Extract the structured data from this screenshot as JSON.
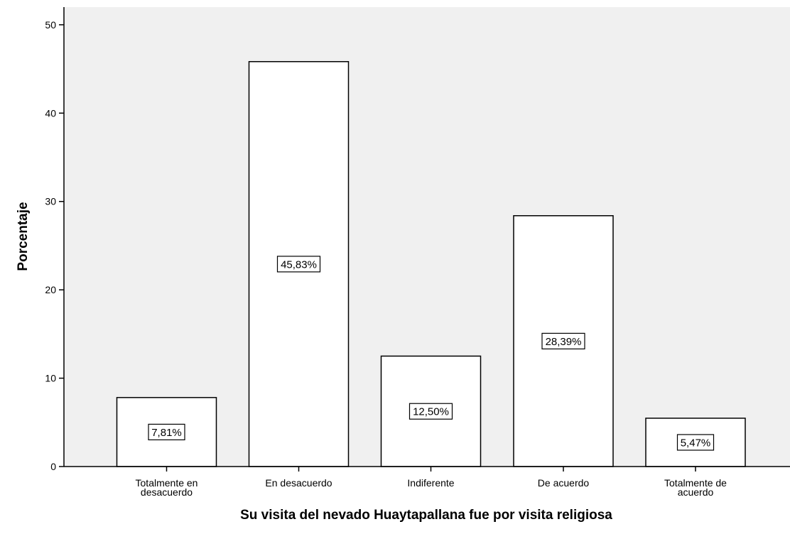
{
  "chart_data": {
    "type": "bar",
    "categories": [
      [
        "Totalmente en",
        "desacuerdo"
      ],
      [
        "En desacuerdo"
      ],
      [
        "Indiferente"
      ],
      [
        "De acuerdo"
      ],
      [
        "Totalmente de",
        "acuerdo"
      ]
    ],
    "values": [
      7.81,
      45.83,
      12.5,
      28.39,
      5.47
    ],
    "data_labels": [
      "7,81%",
      "45,83%",
      "12,50%",
      "28,39%",
      "5,47%"
    ],
    "xlabel": "Su visita del nevado Huaytapallana fue por visita religiosa",
    "ylabel": "Porcentaje",
    "ylim": [
      0,
      52
    ],
    "yticks": [
      0,
      10,
      20,
      30,
      40,
      50
    ],
    "grid": false,
    "legend": "none",
    "colors": {
      "plot_background": "#f0f0f0",
      "bar_fill": "#ffffff",
      "bar_stroke": "#000000",
      "label_box": "#ffffff"
    }
  }
}
